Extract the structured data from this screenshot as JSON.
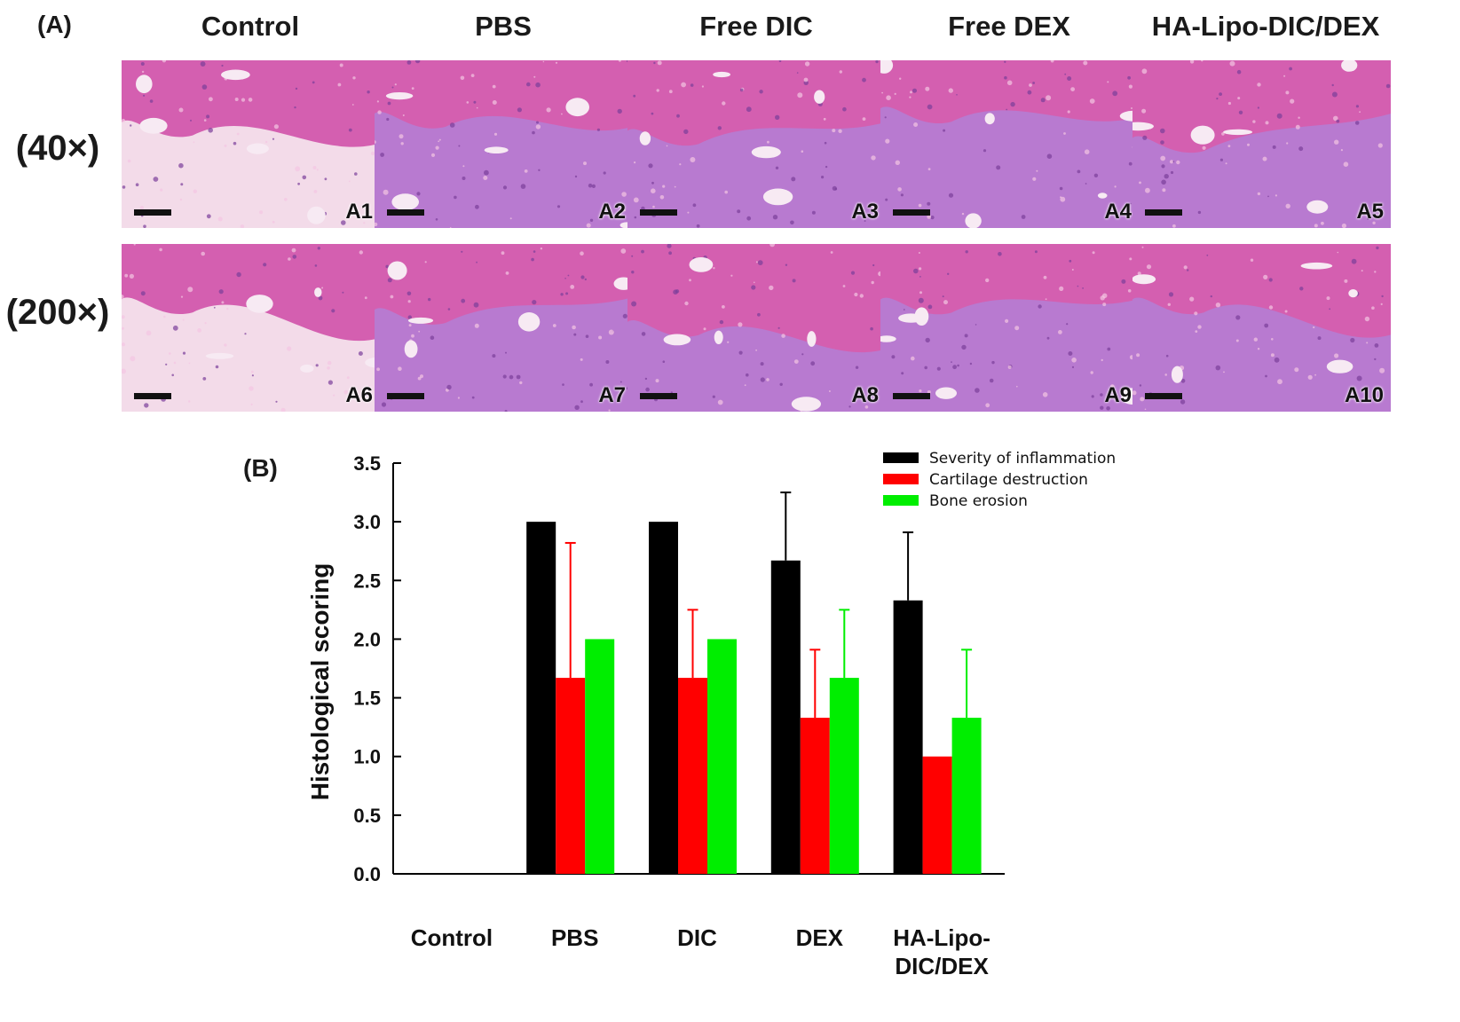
{
  "panel_a": {
    "label": "(A)",
    "columns": [
      "Control",
      "PBS",
      "Free DIC",
      "Free DEX",
      "HA-Lipo-DIC/DEX"
    ],
    "rows": [
      "(40×)",
      "(200×)"
    ],
    "tile_ids": [
      [
        "A1",
        "A2",
        "A3",
        "A4",
        "A5"
      ],
      [
        "A6",
        "A7",
        "A8",
        "A9",
        "A10"
      ]
    ]
  },
  "panel_b": {
    "label": "(B)"
  },
  "colors": {
    "inflammation": "#000000",
    "cartilage": "#ff0000",
    "bone": "#00ee00",
    "tissue_pink": "#e58ec8",
    "tissue_purple": "#b87ad0",
    "bone_pink": "#d45fb0"
  },
  "chart_data": {
    "type": "bar",
    "categories": [
      "Control",
      "PBS",
      "DIC",
      "DEX",
      "HA-Lipo-\nDIC/DEX"
    ],
    "ylabel": "Histological scoring",
    "xlabel": "",
    "ylim": [
      0,
      3.5
    ],
    "yticks": [
      "0.0",
      "0.5",
      "1.0",
      "1.5",
      "2.0",
      "2.5",
      "3.0",
      "3.5"
    ],
    "legend_position": "top-right",
    "series": [
      {
        "name": "Severity of inflammation",
        "color": "#000000",
        "values": [
          0,
          3.0,
          3.0,
          2.67,
          2.33
        ],
        "errors": [
          0,
          0,
          0,
          0.58,
          0.58
        ]
      },
      {
        "name": "Cartilage destruction",
        "color": "#ff0000",
        "values": [
          0,
          1.67,
          1.67,
          1.33,
          1.0
        ],
        "errors": [
          0,
          1.15,
          0.58,
          0.58,
          0
        ]
      },
      {
        "name": "Bone erosion",
        "color": "#00ee00",
        "values": [
          0,
          2.0,
          2.0,
          1.67,
          1.33
        ],
        "errors": [
          0,
          0,
          0,
          0.58,
          0.58
        ]
      }
    ]
  }
}
